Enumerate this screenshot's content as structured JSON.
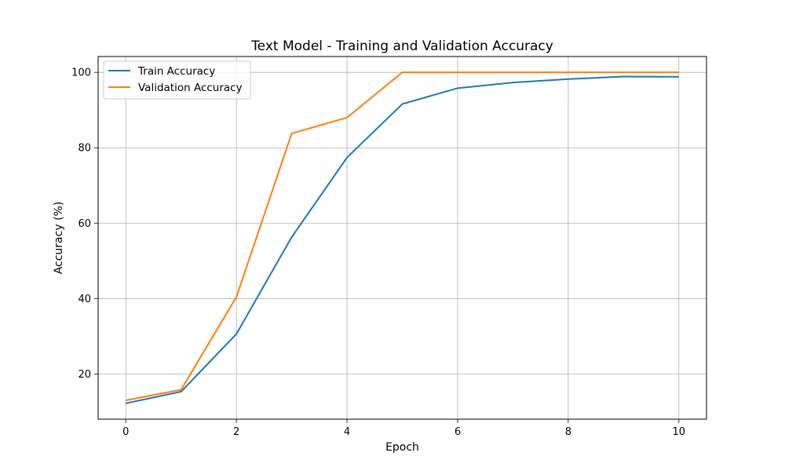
{
  "chart_data": {
    "type": "line",
    "title": "Text Model - Training and Validation Accuracy",
    "xlabel": "Epoch",
    "ylabel": "Accuracy (%)",
    "xlim": [
      -0.5,
      10.5
    ],
    "ylim": [
      8,
      104.2
    ],
    "xticks": [
      0,
      2,
      4,
      6,
      8,
      10
    ],
    "yticks": [
      20,
      40,
      60,
      80,
      100
    ],
    "grid": true,
    "legend_position": "top-left",
    "x": [
      0,
      1,
      2,
      3,
      4,
      5,
      6,
      7,
      8,
      9,
      10
    ],
    "series": [
      {
        "name": "Train Accuracy",
        "color": "#1f77b4",
        "values": [
          12.2,
          15.3,
          30.6,
          56.3,
          77.4,
          91.6,
          95.8,
          97.3,
          98.2,
          98.9,
          98.8
        ]
      },
      {
        "name": "Validation Accuracy",
        "color": "#ff7f0e",
        "values": [
          13.0,
          15.8,
          40.4,
          83.8,
          88.0,
          100.0,
          100.0,
          100.0,
          100.0,
          100.0,
          100.0
        ]
      }
    ]
  }
}
